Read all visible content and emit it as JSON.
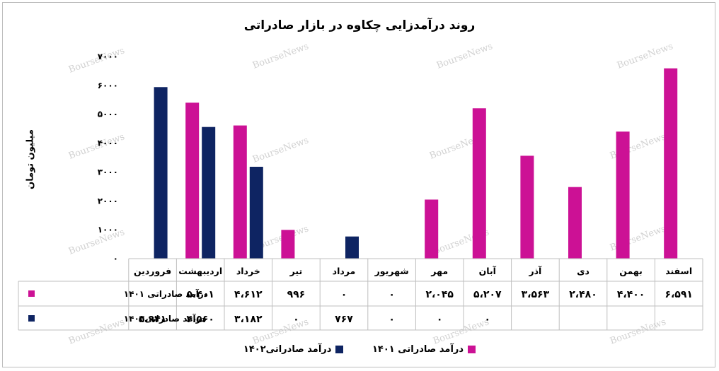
{
  "chart_data": {
    "type": "bar",
    "title": "روند درآمدزایی چکاوه در بازار صادراتی",
    "ylabel": "میلیون تومان",
    "ylim": [
      0,
      7000
    ],
    "y_ticks": [
      0,
      1000,
      2000,
      3000,
      4000,
      5000,
      6000,
      7000
    ],
    "y_tick_labels": [
      "۰",
      "۱۰۰۰",
      "۲۰۰۰",
      "۳۰۰۰",
      "۴۰۰۰",
      "۵۰۰۰",
      "۶۰۰۰",
      "۷۰۰۰"
    ],
    "categories": [
      "اسفند",
      "بهمن",
      "دی",
      "آذر",
      "آبان",
      "مهر",
      "شهریور",
      "مرداد",
      "تیر",
      "خرداد",
      "اردیبهشت",
      "فروردین"
    ],
    "series": [
      {
        "name": "درآمد صادراتی ۱۴۰۱",
        "color": "#cc1195",
        "values": [
          6591,
          4400,
          2480,
          3563,
          5207,
          2045,
          0,
          0,
          996,
          4612,
          5401,
          0
        ],
        "labels": [
          "۶،۵۹۱",
          "۴،۴۰۰",
          "۲،۴۸۰",
          "۳،۵۶۳",
          "۵،۲۰۷",
          "۲،۰۴۵",
          "۰",
          "۰",
          "۹۹۶",
          "۴،۶۱۲",
          "۵،۴۰۱",
          "۰"
        ]
      },
      {
        "name": "درآمد صادراتی۱۴۰۲",
        "color": "#0e2462",
        "values": [
          null,
          null,
          null,
          null,
          0,
          0,
          0,
          767,
          0,
          3182,
          4560,
          5941
        ],
        "labels": [
          "",
          "",
          "",
          "",
          "۰",
          "۰",
          "۰",
          "۷۶۷",
          "۰",
          "۳،۱۸۲",
          "۴،۵۶۰",
          "۵،۹۴۱"
        ]
      }
    ],
    "legend_position": "bottom",
    "grid": false
  },
  "watermark": "BourseNews"
}
